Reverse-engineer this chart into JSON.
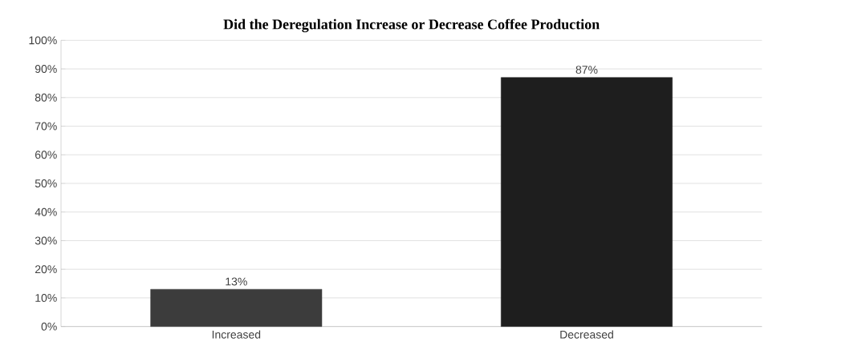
{
  "chart_data": {
    "type": "bar",
    "title": "Did the Deregulation Increase or Decrease Coffee Production",
    "categories": [
      "Increased",
      "Decreased"
    ],
    "values": [
      13,
      87
    ],
    "colors": [
      "#3c3c3c",
      "#1e1e1e"
    ],
    "value_labels": [
      "13%",
      "87%"
    ],
    "ylim": [
      0,
      100
    ],
    "yticks": [
      {
        "value": 0,
        "label": "0%"
      },
      {
        "value": 10,
        "label": "10%"
      },
      {
        "value": 20,
        "label": "20%"
      },
      {
        "value": 30,
        "label": "30%"
      },
      {
        "value": 40,
        "label": "40%"
      },
      {
        "value": 50,
        "label": "50%"
      },
      {
        "value": 60,
        "label": "60%"
      },
      {
        "value": 70,
        "label": "70%"
      },
      {
        "value": 80,
        "label": "80%"
      },
      {
        "value": 90,
        "label": "90%"
      },
      {
        "value": 100,
        "label": "100%"
      }
    ],
    "grid": "y"
  }
}
